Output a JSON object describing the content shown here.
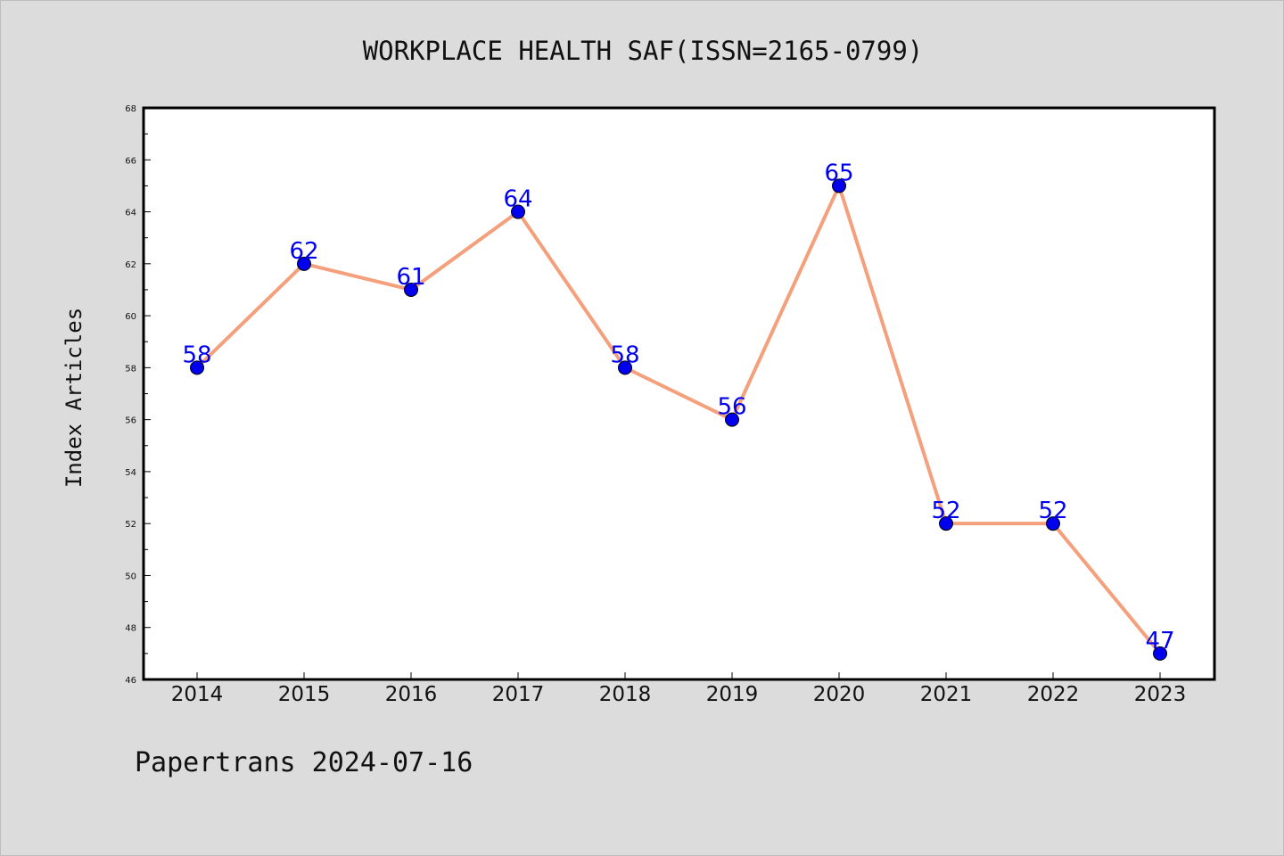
{
  "chart_data": {
    "type": "line",
    "title": "WORKPLACE HEALTH SAF(ISSN=2165-0799)",
    "xlabel": "",
    "ylabel": "Index Articles",
    "categories": [
      "2014",
      "2015",
      "2016",
      "2017",
      "2018",
      "2019",
      "2020",
      "2021",
      "2022",
      "2023"
    ],
    "series": [
      {
        "values": [
          58,
          62,
          61,
          64,
          58,
          56,
          65,
          52,
          52,
          47
        ]
      }
    ],
    "ylim": [
      46,
      68
    ],
    "yticks": [
      46,
      48,
      50,
      52,
      54,
      56,
      58,
      60,
      62,
      64,
      66,
      68
    ],
    "grid": false,
    "legend": "none",
    "line_color": "#f4a07c",
    "marker_color": "#0000ee",
    "label_color": "#0000ee"
  },
  "footer": "Papertrans 2024-07-16"
}
